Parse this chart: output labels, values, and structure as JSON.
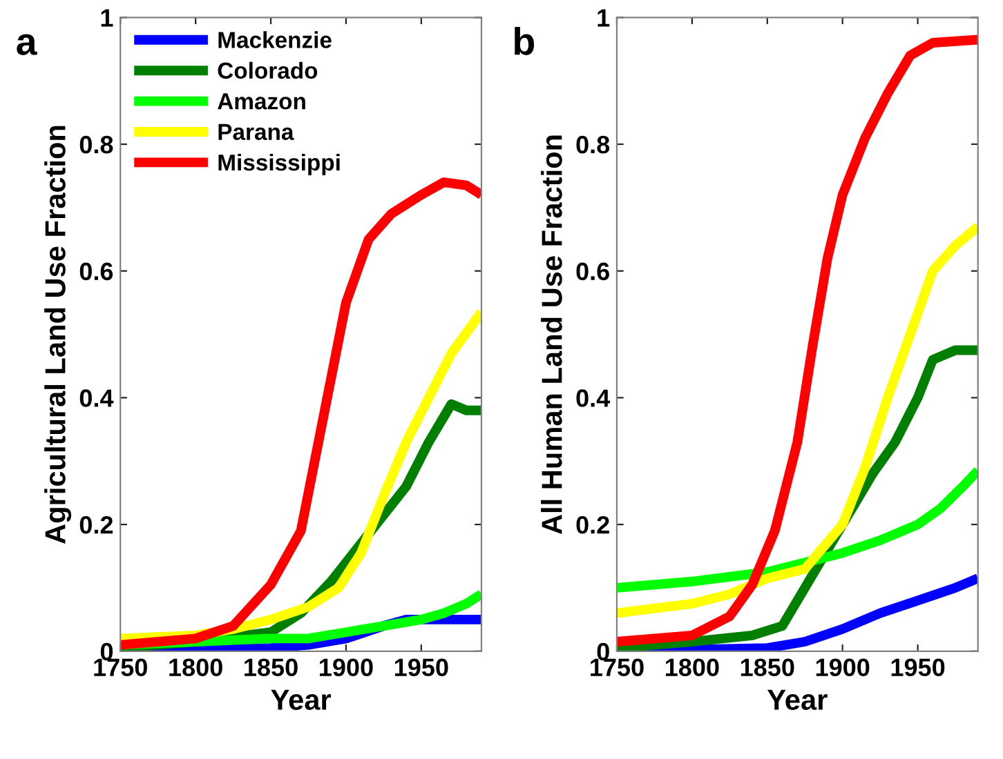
{
  "chart_data": [
    {
      "type": "line",
      "xlabel": "Year",
      "ylabel": "Agricultural Land Use Fraction",
      "annotations": [
        "a"
      ],
      "legend": "top left",
      "grid": false,
      "xlim": [
        1750,
        1990
      ],
      "xticks": [
        1750,
        1800,
        1850,
        1900,
        1950
      ],
      "ylim": [
        0,
        1
      ],
      "yticks": [
        0,
        0.2,
        0.4,
        0.6,
        0.8,
        1
      ],
      "series": [
        {
          "name": "Mackenzie",
          "color": "#0000ff",
          "x": [
            1750,
            1850,
            1875,
            1900,
            1925,
            1940,
            1960,
            1990
          ],
          "values": [
            0,
            0.005,
            0.01,
            0.02,
            0.04,
            0.05,
            0.05,
            0.05
          ]
        },
        {
          "name": "Colorado",
          "color": "#007f00",
          "x": [
            1750,
            1800,
            1850,
            1870,
            1890,
            1900,
            1920,
            1940,
            1955,
            1970,
            1980,
            1990
          ],
          "values": [
            0.005,
            0.015,
            0.03,
            0.06,
            0.11,
            0.14,
            0.2,
            0.26,
            0.33,
            0.39,
            0.38,
            0.38
          ]
        },
        {
          "name": "Amazon",
          "color": "#00ff00",
          "x": [
            1750,
            1800,
            1850,
            1875,
            1900,
            1925,
            1950,
            1965,
            1980,
            1990
          ],
          "values": [
            0.01,
            0.015,
            0.02,
            0.02,
            0.03,
            0.04,
            0.05,
            0.06,
            0.075,
            0.09
          ]
        },
        {
          "name": "Parana",
          "color": "#ffff00",
          "x": [
            1750,
            1800,
            1825,
            1850,
            1875,
            1895,
            1910,
            1925,
            1940,
            1955,
            1970,
            1990
          ],
          "values": [
            0.02,
            0.025,
            0.035,
            0.05,
            0.07,
            0.1,
            0.155,
            0.245,
            0.33,
            0.4,
            0.47,
            0.535
          ]
        },
        {
          "name": "Mississippi",
          "color": "#ff0000",
          "x": [
            1750,
            1800,
            1825,
            1850,
            1870,
            1885,
            1900,
            1915,
            1930,
            1950,
            1965,
            1980,
            1990
          ],
          "values": [
            0.01,
            0.02,
            0.04,
            0.105,
            0.19,
            0.37,
            0.55,
            0.65,
            0.69,
            0.72,
            0.74,
            0.735,
            0.72
          ]
        }
      ]
    },
    {
      "type": "line",
      "xlabel": "Year",
      "ylabel": "All Human Land Use Fraction",
      "annotations": [
        "b"
      ],
      "grid": false,
      "xlim": [
        1750,
        1990
      ],
      "xticks": [
        1750,
        1800,
        1850,
        1900,
        1950
      ],
      "ylim": [
        0,
        1
      ],
      "yticks": [
        0,
        0.2,
        0.4,
        0.6,
        0.8,
        1
      ],
      "series": [
        {
          "color": "#0000ff",
          "x": [
            1750,
            1850,
            1875,
            1900,
            1925,
            1950,
            1975,
            1990
          ],
          "values": [
            0,
            0.005,
            0.015,
            0.035,
            0.06,
            0.08,
            0.1,
            0.115
          ]
        },
        {
          "color": "#007f00",
          "x": [
            1750,
            1800,
            1840,
            1860,
            1880,
            1900,
            1920,
            1935,
            1950,
            1960,
            1975,
            1990
          ],
          "values": [
            0.005,
            0.015,
            0.025,
            0.04,
            0.12,
            0.2,
            0.28,
            0.33,
            0.4,
            0.46,
            0.475,
            0.475
          ]
        },
        {
          "color": "#00ff00",
          "x": [
            1750,
            1800,
            1850,
            1875,
            1900,
            1925,
            1950,
            1965,
            1980,
            1990
          ],
          "values": [
            0.1,
            0.11,
            0.125,
            0.14,
            0.155,
            0.175,
            0.2,
            0.225,
            0.26,
            0.285
          ]
        },
        {
          "color": "#ffff00",
          "x": [
            1750,
            1800,
            1825,
            1850,
            1875,
            1900,
            1915,
            1930,
            1945,
            1960,
            1975,
            1990
          ],
          "values": [
            0.06,
            0.075,
            0.09,
            0.115,
            0.13,
            0.2,
            0.29,
            0.4,
            0.5,
            0.6,
            0.64,
            0.67
          ]
        },
        {
          "color": "#ff0000",
          "x": [
            1750,
            1800,
            1825,
            1840,
            1855,
            1870,
            1880,
            1890,
            1900,
            1915,
            1930,
            1945,
            1960,
            1990
          ],
          "values": [
            0.015,
            0.025,
            0.055,
            0.105,
            0.19,
            0.33,
            0.48,
            0.62,
            0.72,
            0.81,
            0.88,
            0.94,
            0.96,
            0.965
          ]
        }
      ]
    }
  ]
}
